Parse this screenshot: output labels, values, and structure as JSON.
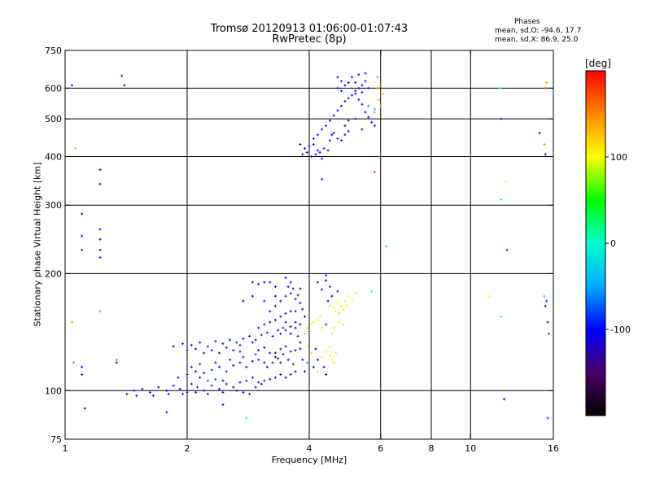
{
  "header": {
    "title_line1": "Tromsø 20120913 01:06:00-01:07:43",
    "title_line2": "RwPretec (8p)"
  },
  "stats": {
    "heading": "Phases",
    "line_o": "mean, sd,O: -94.6, 17.7",
    "line_x": "mean, sd,X:  86.9, 25.0"
  },
  "colorbar": {
    "label": "[deg]",
    "range": [
      -200,
      200
    ],
    "ticks": [
      {
        "value": 100,
        "label": "100"
      },
      {
        "value": 0,
        "label": "0"
      },
      {
        "value": -100,
        "label": "-100"
      }
    ],
    "colormap": [
      "#000000",
      "#4a0066",
      "#0000ff",
      "#00aaff",
      "#00ffcc",
      "#00ff00",
      "#ffff00",
      "#ff8800",
      "#ff0000"
    ]
  },
  "chart_data": {
    "type": "scatter",
    "title": "Tromsø 20120913 01:06:00-01:07:43 RwPretec (8p)",
    "xlabel": "Frequency [MHz]",
    "ylabel": "Stationary phase Virtual Height [km]",
    "x_scale": "log",
    "y_scale": "log",
    "xlim": [
      1,
      16
    ],
    "ylim": [
      75,
      750
    ],
    "grid": true,
    "x_ticks": [
      {
        "value": 1,
        "label": "1"
      },
      {
        "value": 2,
        "label": "2"
      },
      {
        "value": 4,
        "label": "4"
      },
      {
        "value": 6,
        "label": "6"
      },
      {
        "value": 8,
        "label": "8"
      },
      {
        "value": 10,
        "label": "10"
      },
      {
        "value": 16,
        "label": "16"
      }
    ],
    "y_ticks": [
      {
        "value": 75,
        "label": "75"
      },
      {
        "value": 100,
        "label": "100"
      },
      {
        "value": 200,
        "label": "200"
      },
      {
        "value": 300,
        "label": "300"
      },
      {
        "value": 400,
        "label": "400"
      },
      {
        "value": 500,
        "label": "500"
      },
      {
        "value": 600,
        "label": "600"
      },
      {
        "value": 750,
        "label": "750"
      }
    ],
    "x_gridlines": [
      2,
      4,
      6,
      8,
      10
    ],
    "y_gridlines": [
      100,
      200,
      300,
      400,
      500,
      600
    ],
    "color_variable": "phase [deg]",
    "points": [
      [
        1.42,
        98,
        -100
      ],
      [
        1.48,
        100,
        -95
      ],
      [
        1.55,
        101,
        -105
      ],
      [
        1.62,
        99,
        -100
      ],
      [
        1.7,
        102,
        -110
      ],
      [
        1.78,
        100,
        -100
      ],
      [
        1.85,
        103,
        -95
      ],
      [
        1.92,
        101,
        -105
      ],
      [
        2.0,
        99,
        -100
      ],
      [
        2.05,
        104,
        -110
      ],
      [
        2.12,
        102,
        -95
      ],
      [
        2.2,
        100,
        -100
      ],
      [
        2.3,
        103,
        -105
      ],
      [
        2.4,
        101,
        -100
      ],
      [
        2.5,
        104,
        -95
      ],
      [
        2.6,
        102,
        -110
      ],
      [
        2.7,
        105,
        -100
      ],
      [
        1.5,
        97,
        -102
      ],
      [
        1.65,
        97,
        -98
      ],
      [
        1.8,
        98,
        -104
      ],
      [
        1.95,
        98,
        -96
      ],
      [
        2.1,
        99,
        -100
      ],
      [
        2.25,
        98,
        -108
      ],
      [
        2.45,
        99,
        -100
      ],
      [
        2.65,
        100,
        -95
      ],
      [
        1.9,
        108,
        -100
      ],
      [
        2.0,
        110,
        -95
      ],
      [
        2.1,
        112,
        -105
      ],
      [
        2.2,
        111,
        -100
      ],
      [
        2.3,
        113,
        -90
      ],
      [
        2.4,
        115,
        -100
      ],
      [
        2.5,
        112,
        -85
      ],
      [
        2.6,
        116,
        -100
      ],
      [
        2.7,
        118,
        -95
      ],
      [
        2.8,
        115,
        -100
      ],
      [
        2.9,
        119,
        -110
      ],
      [
        3.0,
        120,
        -95
      ],
      [
        3.1,
        118,
        -100
      ],
      [
        2.05,
        115,
        -100
      ],
      [
        2.15,
        117,
        -95
      ],
      [
        2.35,
        118,
        -105
      ],
      [
        2.55,
        120,
        -100
      ],
      [
        2.75,
        122,
        -95
      ],
      [
        2.95,
        124,
        -80
      ],
      [
        1.85,
        130,
        -100
      ],
      [
        1.95,
        132,
        -95
      ],
      [
        2.05,
        131,
        -105
      ],
      [
        2.15,
        133,
        -100
      ],
      [
        2.25,
        130,
        -95
      ],
      [
        2.35,
        134,
        -110
      ],
      [
        2.45,
        132,
        -100
      ],
      [
        2.55,
        135,
        -105
      ],
      [
        2.65,
        133,
        -95
      ],
      [
        2.75,
        136,
        -100
      ],
      [
        2.85,
        138,
        -110
      ],
      [
        2.95,
        135,
        -100
      ],
      [
        3.05,
        139,
        -95
      ],
      [
        3.15,
        141,
        -100
      ],
      [
        3.25,
        138,
        -105
      ],
      [
        3.35,
        143,
        -100
      ],
      [
        3.45,
        145,
        -95
      ],
      [
        2.1,
        128,
        -100
      ],
      [
        2.3,
        127,
        -105
      ],
      [
        2.5,
        129,
        -100
      ],
      [
        2.7,
        131,
        -95
      ],
      [
        2.9,
        133,
        -100
      ],
      [
        3.0,
        145,
        -110
      ],
      [
        3.1,
        148,
        -100
      ],
      [
        3.2,
        150,
        -105
      ],
      [
        3.3,
        152,
        -120
      ],
      [
        3.4,
        155,
        -100
      ],
      [
        3.5,
        158,
        -110
      ],
      [
        3.6,
        160,
        -125
      ],
      [
        3.2,
        125,
        -130
      ],
      [
        3.3,
        122,
        -140
      ],
      [
        3.4,
        128,
        -135
      ],
      [
        3.5,
        130,
        -130
      ],
      [
        3.6,
        126,
        -140
      ],
      [
        3.15,
        115,
        -130
      ],
      [
        3.25,
        118,
        -140
      ],
      [
        3.35,
        121,
        -135
      ],
      [
        3.45,
        124,
        -125
      ],
      [
        3.55,
        120,
        -130
      ],
      [
        3.65,
        117,
        -135
      ],
      [
        3.4,
        140,
        -130
      ],
      [
        3.5,
        143,
        -140
      ],
      [
        3.6,
        146,
        -130
      ],
      [
        3.7,
        150,
        -120
      ],
      [
        3.75,
        138,
        -125
      ],
      [
        3.8,
        133,
        -130
      ],
      [
        3.3,
        165,
        -130
      ],
      [
        3.4,
        170,
        -125
      ],
      [
        3.5,
        175,
        -130
      ],
      [
        3.6,
        178,
        -120
      ],
      [
        3.7,
        172,
        -130
      ],
      [
        3.8,
        168,
        -110
      ],
      [
        3.2,
        160,
        -115
      ],
      [
        3.55,
        185,
        -110
      ],
      [
        3.65,
        183,
        -100
      ],
      [
        3.75,
        176,
        -120
      ],
      [
        3.85,
        162,
        -100
      ],
      [
        3.9,
        155,
        -110
      ],
      [
        3.9,
        140,
        120
      ],
      [
        3.95,
        145,
        110
      ],
      [
        4.0,
        142,
        -60
      ],
      [
        4.05,
        148,
        100
      ],
      [
        4.1,
        150,
        95
      ],
      [
        4.2,
        152,
        105
      ],
      [
        4.25,
        155,
        110
      ],
      [
        4.3,
        145,
        95
      ],
      [
        4.4,
        148,
        -80
      ],
      [
        3.95,
        130,
        100
      ],
      [
        4.05,
        125,
        110
      ],
      [
        4.15,
        128,
        -100
      ],
      [
        4.3,
        122,
        105
      ],
      [
        4.4,
        126,
        95
      ],
      [
        4.5,
        123,
        110
      ],
      [
        4.55,
        120,
        100
      ],
      [
        4.6,
        118,
        115
      ],
      [
        3.95,
        118,
        -60
      ],
      [
        4.1,
        115,
        -100
      ],
      [
        4.2,
        112,
        95
      ],
      [
        4.4,
        110,
        -100
      ],
      [
        4.5,
        165,
        110
      ],
      [
        4.6,
        163,
        105
      ],
      [
        4.7,
        168,
        100
      ],
      [
        4.8,
        165,
        110
      ],
      [
        4.9,
        170,
        105
      ],
      [
        5.0,
        175,
        100
      ],
      [
        5.1,
        172,
        95
      ],
      [
        5.2,
        178,
        110
      ],
      [
        4.65,
        160,
        100
      ],
      [
        4.75,
        158,
        115
      ],
      [
        4.85,
        162,
        100
      ],
      [
        4.95,
        166,
        105
      ],
      [
        4.2,
        190,
        -100
      ],
      [
        4.4,
        192,
        -100
      ],
      [
        4.3,
        182,
        -95
      ],
      [
        4.5,
        185,
        -110
      ],
      [
        4.0,
        200,
        -100
      ],
      [
        4.4,
        198,
        -80
      ],
      [
        3.8,
        183,
        -100
      ],
      [
        3.7,
        160,
        -120
      ],
      [
        3.8,
        148,
        -125
      ],
      [
        3.8,
        128,
        -110
      ],
      [
        3.85,
        120,
        -100
      ],
      [
        3.9,
        112,
        -120
      ],
      [
        3.6,
        110,
        -130
      ],
      [
        3.7,
        112,
        -140
      ],
      [
        3.5,
        108,
        -130
      ],
      [
        3.4,
        110,
        -135
      ],
      [
        3.3,
        108,
        -140
      ],
      [
        3.2,
        107,
        -130
      ],
      [
        3.1,
        106,
        -140
      ],
      [
        3.0,
        105,
        -125
      ],
      [
        2.9,
        108,
        -110
      ],
      [
        2.8,
        106,
        -100
      ],
      [
        2.95,
        102,
        -100
      ],
      [
        2.85,
        98,
        -95
      ],
      [
        2.75,
        99,
        -100
      ],
      [
        3.05,
        104,
        -105
      ],
      [
        2.45,
        106,
        -95
      ],
      [
        2.35,
        107,
        -80
      ],
      [
        2.25,
        106,
        -70
      ],
      [
        2.15,
        108,
        -100
      ],
      [
        3.3,
        125,
        -120
      ],
      [
        3.4,
        118,
        -125
      ],
      [
        3.5,
        150,
        -120
      ],
      [
        3.6,
        140,
        -125
      ],
      [
        3.7,
        145,
        -120
      ],
      [
        3.7,
        127,
        -115
      ],
      [
        3.0,
        127,
        -105
      ],
      [
        3.1,
        129,
        -110
      ],
      [
        2.7,
        126,
        -90
      ],
      [
        2.6,
        127,
        -100
      ],
      [
        2.4,
        125,
        -100
      ],
      [
        2.2,
        125,
        -105
      ],
      [
        2.0,
        127,
        -100
      ],
      [
        3.6,
        190,
        -100
      ],
      [
        3.5,
        195,
        -110
      ],
      [
        3.3,
        185,
        -100
      ],
      [
        2.9,
        190,
        -100
      ],
      [
        3.0,
        188,
        -95
      ],
      [
        3.1,
        190,
        -100
      ],
      [
        3.2,
        190,
        -100
      ],
      [
        3.3,
        175,
        -100
      ],
      [
        2.75,
        170,
        -100
      ],
      [
        2.9,
        175,
        -105
      ],
      [
        3.1,
        170,
        -100
      ],
      [
        4.55,
        175,
        -100
      ],
      [
        4.7,
        180,
        -100
      ],
      [
        4.45,
        170,
        -110
      ],
      [
        4.6,
        145,
        115
      ],
      [
        4.75,
        150,
        100
      ],
      [
        4.85,
        148,
        110
      ],
      [
        4.55,
        140,
        105
      ],
      [
        4.5,
        130,
        95
      ],
      [
        4.65,
        125,
        110
      ],
      [
        4.35,
        115,
        -130
      ],
      [
        4.2,
        120,
        -120
      ],
      [
        3.8,
        430,
        -100
      ],
      [
        3.9,
        420,
        -110
      ],
      [
        4.0,
        425,
        -100
      ],
      [
        4.1,
        430,
        -95
      ],
      [
        4.2,
        415,
        -100
      ],
      [
        3.85,
        405,
        -105
      ],
      [
        3.95,
        410,
        -100
      ],
      [
        4.05,
        400,
        -100
      ],
      [
        4.15,
        405,
        -110
      ],
      [
        4.25,
        410,
        -100
      ],
      [
        4.35,
        420,
        -95
      ],
      [
        4.45,
        415,
        -100
      ],
      [
        4.1,
        445,
        -100
      ],
      [
        4.2,
        455,
        -95
      ],
      [
        4.3,
        470,
        -100
      ],
      [
        4.4,
        480,
        -105
      ],
      [
        4.5,
        495,
        -100
      ],
      [
        4.6,
        510,
        -95
      ],
      [
        4.7,
        525,
        -100
      ],
      [
        4.8,
        540,
        -110
      ],
      [
        4.9,
        555,
        -100
      ],
      [
        5.0,
        565,
        -95
      ],
      [
        5.1,
        575,
        -100
      ],
      [
        5.2,
        590,
        -100
      ],
      [
        5.3,
        600,
        -105
      ],
      [
        5.4,
        610,
        -100
      ],
      [
        5.5,
        625,
        -95
      ],
      [
        4.7,
        600,
        -100
      ],
      [
        4.8,
        590,
        -105
      ],
      [
        4.9,
        610,
        -100
      ],
      [
        5.0,
        620,
        -100
      ],
      [
        5.2,
        580,
        -105
      ],
      [
        5.3,
        560,
        -100
      ],
      [
        5.4,
        545,
        -95
      ],
      [
        5.5,
        520,
        -100
      ],
      [
        5.6,
        505,
        -100
      ],
      [
        5.7,
        490,
        -105
      ],
      [
        5.8,
        480,
        -100
      ],
      [
        5.2,
        500,
        -130
      ],
      [
        5.0,
        495,
        -120
      ],
      [
        4.9,
        480,
        -125
      ],
      [
        5.4,
        470,
        -120
      ],
      [
        5.6,
        540,
        -60
      ],
      [
        5.8,
        530,
        -40
      ],
      [
        4.6,
        460,
        -100
      ],
      [
        4.7,
        445,
        -95
      ],
      [
        4.8,
        440,
        -100
      ],
      [
        4.9,
        455,
        -110
      ],
      [
        5.0,
        465,
        -100
      ],
      [
        4.5,
        440,
        -100
      ],
      [
        4.55,
        455,
        -105
      ],
      [
        4.3,
        395,
        -100
      ],
      [
        4.7,
        640,
        -100
      ],
      [
        5.3,
        650,
        -105
      ],
      [
        4.8,
        625,
        -100
      ],
      [
        5.1,
        640,
        -95
      ],
      [
        5.5,
        655,
        -100
      ],
      [
        5.2,
        620,
        -95
      ],
      [
        5.4,
        585,
        -100
      ],
      [
        5.6,
        600,
        -105
      ],
      [
        5.9,
        640,
        160
      ],
      [
        5.9,
        600,
        150
      ],
      [
        5.95,
        560,
        150
      ],
      [
        5.8,
        520,
        140
      ],
      [
        6.0,
        610,
        160
      ],
      [
        6.0,
        540,
        140
      ],
      [
        6.1,
        580,
        120
      ],
      [
        4.3,
        350,
        -100
      ],
      [
        5.8,
        365,
        180
      ],
      [
        6.2,
        235,
        -30
      ],
      [
        5.7,
        180,
        0
      ],
      [
        1.04,
        610,
        -100
      ],
      [
        1.38,
        645,
        -100
      ],
      [
        1.4,
        610,
        -100
      ],
      [
        1.06,
        420,
        130
      ],
      [
        1.1,
        285,
        -100
      ],
      [
        1.22,
        370,
        -100
      ],
      [
        1.22,
        340,
        -100
      ],
      [
        1.1,
        250,
        -100
      ],
      [
        1.1,
        230,
        -100
      ],
      [
        1.22,
        260,
        -100
      ],
      [
        1.22,
        245,
        -100
      ],
      [
        1.22,
        230,
        -100
      ],
      [
        1.22,
        220,
        -100
      ],
      [
        1.04,
        150,
        140
      ],
      [
        1.1,
        115,
        -100
      ],
      [
        1.1,
        110,
        -100
      ],
      [
        1.05,
        118,
        160
      ],
      [
        1.22,
        160,
        150
      ],
      [
        1.34,
        120,
        170
      ],
      [
        1.34,
        118,
        -100
      ],
      [
        1.12,
        90,
        -100
      ],
      [
        1.78,
        88,
        -100
      ],
      [
        2.45,
        92,
        -100
      ],
      [
        2.8,
        85,
        0
      ],
      [
        11.8,
        600,
        30
      ],
      [
        11.9,
        500,
        -100
      ],
      [
        11.9,
        310,
        -10
      ],
      [
        12.2,
        345,
        100
      ],
      [
        12.3,
        230,
        -100
      ],
      [
        11.9,
        155,
        -10
      ],
      [
        11.1,
        175,
        100
      ],
      [
        12.1,
        95,
        -100
      ],
      [
        14.8,
        460,
        -100
      ],
      [
        15.2,
        430,
        150
      ],
      [
        15.3,
        405,
        -110
      ],
      [
        15.3,
        600,
        180
      ],
      [
        15.4,
        620,
        140
      ],
      [
        15.3,
        165,
        -130
      ],
      [
        15.5,
        150,
        -100
      ],
      [
        15.6,
        140,
        -80
      ],
      [
        15.5,
        85,
        -80
      ],
      [
        15.2,
        175,
        -20
      ],
      [
        15.4,
        170,
        -120
      ]
    ]
  }
}
